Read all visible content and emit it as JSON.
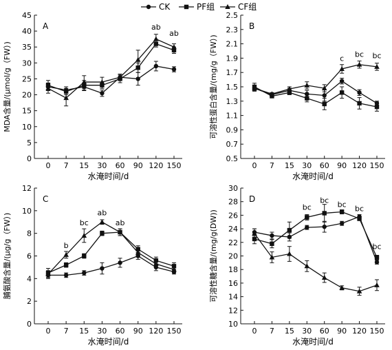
{
  "legend": [
    {
      "name": "CK",
      "marker": "circle"
    },
    {
      "name": "PF组",
      "marker": "square"
    },
    {
      "name": "CF组",
      "marker": "triangle"
    }
  ],
  "chart_data": [
    {
      "type": "line",
      "panel_label": "A",
      "ylabel": "MDA含量/(μmol/g（FW）)",
      "xlabel": "水淹时间/d",
      "x_categories": [
        "0",
        "7",
        "15",
        "30",
        "60",
        "90",
        "120",
        "150"
      ],
      "ylim": [
        0,
        45
      ],
      "yticks": [
        0,
        5,
        10,
        15,
        20,
        25,
        30,
        35,
        40,
        45
      ],
      "ytick_labels": [
        "0",
        "5",
        "10",
        "15",
        "20",
        "25",
        "30",
        "35",
        "40",
        "45"
      ],
      "series": [
        {
          "name": "CK",
          "marker": "circle",
          "values": [
            22.5,
            21.5,
            22.5,
            20.5,
            25.5,
            25.0,
            29.0,
            28.0
          ],
          "errors": [
            1.2,
            1.0,
            1.2,
            1.0,
            1.0,
            2.0,
            1.5,
            0.8
          ]
        },
        {
          "name": "PF组",
          "marker": "square",
          "values": [
            23.0,
            21.0,
            23.0,
            23.0,
            25.0,
            28.5,
            36.0,
            34.0
          ],
          "errors": [
            1.5,
            1.0,
            1.5,
            1.0,
            1.2,
            1.5,
            1.0,
            1.0
          ]
        },
        {
          "name": "CF组",
          "marker": "triangle",
          "values": [
            22.0,
            19.0,
            24.0,
            24.0,
            25.5,
            31.0,
            37.5,
            35.0
          ],
          "errors": [
            1.5,
            2.5,
            2.0,
            1.5,
            1.0,
            3.0,
            1.5,
            1.0
          ]
        }
      ],
      "annotations": [
        {
          "x": "120",
          "text": "ab",
          "y": 40.5
        },
        {
          "x": "150",
          "text": "ab",
          "y": 38.5
        }
      ]
    },
    {
      "type": "line",
      "panel_label": "B",
      "ylabel": "可溶性蛋白含量/(mg/g（FW）)",
      "xlabel": "水淹时间/d",
      "x_categories": [
        "0",
        "7",
        "15",
        "30",
        "60",
        "90",
        "120",
        "150"
      ],
      "ylim": [
        0.5,
        2.5
      ],
      "yticks": [
        0.5,
        0.7,
        0.9,
        1.1,
        1.3,
        1.5,
        1.7,
        1.9,
        2.1,
        2.3,
        2.5
      ],
      "ytick_labels": [
        "0.5",
        "0.7",
        "0.9",
        "1.1",
        "1.3",
        "1.5",
        "1.7",
        "1.9",
        "2.1",
        "2.3",
        "2.5"
      ],
      "series": [
        {
          "name": "CK",
          "marker": "circle",
          "values": [
            1.48,
            1.39,
            1.45,
            1.4,
            1.38,
            1.58,
            1.42,
            1.27
          ],
          "errors": [
            0.04,
            0.02,
            0.03,
            0.05,
            0.08,
            0.04,
            0.04,
            0.03
          ]
        },
        {
          "name": "PF组",
          "marker": "square",
          "values": [
            1.5,
            1.37,
            1.42,
            1.34,
            1.26,
            1.42,
            1.27,
            1.22
          ],
          "errors": [
            0.05,
            0.02,
            0.03,
            0.05,
            0.08,
            0.08,
            0.08,
            0.06
          ]
        },
        {
          "name": "CF组",
          "marker": "triangle",
          "values": [
            1.48,
            1.4,
            1.47,
            1.52,
            1.48,
            1.75,
            1.81,
            1.78
          ],
          "errors": [
            0.04,
            0.02,
            0.03,
            0.05,
            0.05,
            0.06,
            0.05,
            0.05
          ]
        }
      ],
      "annotations": [
        {
          "x": "90",
          "text": "c",
          "y": 1.86
        },
        {
          "x": "120",
          "text": "bc",
          "y": 1.92
        },
        {
          "x": "150",
          "text": "bc",
          "y": 1.9
        }
      ]
    },
    {
      "type": "line",
      "panel_label": "C",
      "ylabel": "脯氨酸含量/(μg/g（FW）)",
      "xlabel": "水淹时间/d",
      "x_categories": [
        "0",
        "7",
        "15",
        "30",
        "60",
        "90",
        "120",
        "150"
      ],
      "ylim": [
        0,
        12
      ],
      "yticks": [
        0,
        2,
        4,
        6,
        8,
        10,
        12
      ],
      "ytick_labels": [
        "0",
        "2",
        "4",
        "6",
        "8",
        "10",
        "12"
      ],
      "series": [
        {
          "name": "CK",
          "marker": "circle",
          "values": [
            4.3,
            4.3,
            4.5,
            4.9,
            5.4,
            6.0,
            5.0,
            4.6
          ],
          "errors": [
            0.3,
            0.2,
            0.2,
            0.5,
            0.4,
            0.3,
            0.3,
            0.2
          ]
        },
        {
          "name": "PF组",
          "marker": "square",
          "values": [
            4.5,
            5.2,
            6.0,
            8.0,
            8.1,
            6.6,
            5.6,
            5.1
          ],
          "errors": [
            0.4,
            0.2,
            0.2,
            0.2,
            0.3,
            0.3,
            0.3,
            0.3
          ]
        },
        {
          "name": "CF组",
          "marker": "triangle",
          "values": [
            4.4,
            6.1,
            7.8,
            9.0,
            8.1,
            6.3,
            5.3,
            4.8
          ],
          "errors": [
            0.3,
            0.3,
            0.6,
            0.2,
            0.3,
            0.3,
            0.3,
            0.3
          ]
        }
      ],
      "annotations": [
        {
          "x": "7",
          "text": "b",
          "y": 6.7
        },
        {
          "x": "15",
          "text": "bc",
          "y": 8.7
        },
        {
          "x": "30",
          "text": "ab",
          "y": 9.6
        },
        {
          "x": "60",
          "text": "ab",
          "y": 8.7
        }
      ]
    },
    {
      "type": "line",
      "panel_label": "D",
      "ylabel": "可溶性糖含量/(mg/g(DW))",
      "xlabel": "水淹时间/d",
      "x_categories": [
        "0",
        "7",
        "15",
        "30",
        "60",
        "90",
        "120",
        "150"
      ],
      "ylim": [
        10,
        30
      ],
      "yticks": [
        10,
        12,
        14,
        16,
        18,
        20,
        22,
        24,
        26,
        28,
        30
      ],
      "ytick_labels": [
        "10",
        "12",
        "14",
        "16",
        "18",
        "20",
        "22",
        "24",
        "26",
        "28",
        "30"
      ],
      "series": [
        {
          "name": "CK",
          "marker": "circle",
          "values": [
            23.5,
            23.0,
            22.8,
            24.2,
            24.3,
            24.8,
            25.8,
            19.1
          ],
          "errors": [
            0.5,
            0.5,
            0.6,
            0.3,
            0.8,
            0.3,
            0.3,
            0.3
          ]
        },
        {
          "name": "PF组",
          "marker": "square",
          "values": [
            22.5,
            21.8,
            23.8,
            25.7,
            26.3,
            26.5,
            25.5,
            19.8
          ],
          "errors": [
            0.7,
            0.6,
            1.2,
            0.4,
            1.3,
            0.3,
            0.3,
            0.3
          ]
        },
        {
          "name": "CF组",
          "marker": "triangle",
          "values": [
            23.3,
            19.8,
            20.3,
            18.5,
            16.8,
            15.3,
            14.8,
            15.7
          ],
          "errors": [
            0.7,
            0.8,
            1.1,
            0.8,
            0.7,
            0.3,
            0.6,
            0.8
          ]
        }
      ],
      "annotations": [
        {
          "x": "30",
          "text": "bc",
          "y": 26.8
        },
        {
          "x": "60",
          "text": "bc",
          "y": 27.8
        },
        {
          "x": "90",
          "text": "bc",
          "y": 27.2
        },
        {
          "x": "120",
          "text": "bc",
          "y": 26.6
        },
        {
          "x": "150",
          "text": "bc",
          "y": 21.0
        }
      ]
    }
  ]
}
